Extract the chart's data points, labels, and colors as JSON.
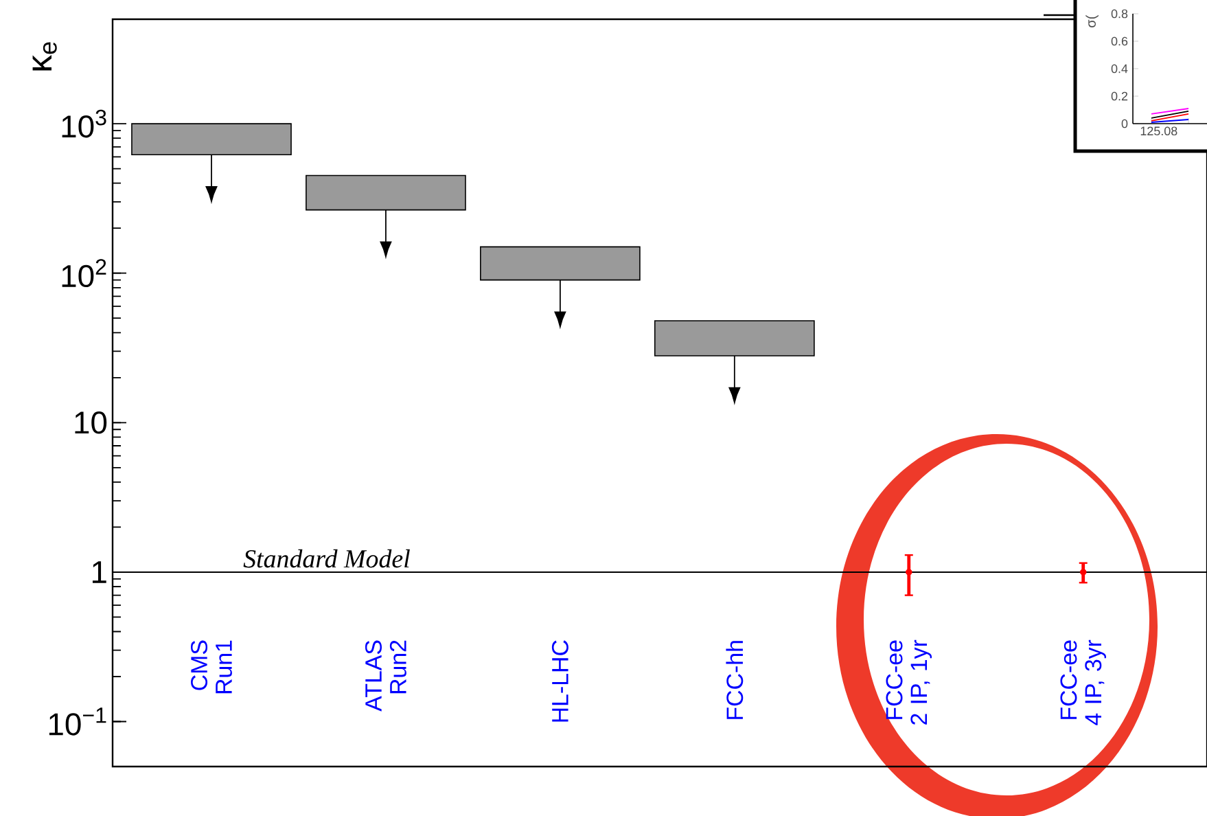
{
  "chart_data": [
    {
      "type": "bar",
      "ylabel": "κ$_{e}$",
      "categories": [
        "CMS Run1",
        "ATLAS Run2",
        "HL-LHC",
        "FCC-hh",
        "FCC-ee 2 IP, 1yr",
        "FCC-ee 4 IP, 3yr"
      ],
      "log": "y",
      "ylim": [
        0.05,
        5000
      ],
      "yticks": [
        {
          "value": 0.1,
          "label": "10$^{−1}$"
        },
        1,
        10,
        {
          "value": 100,
          "label": "10$^{2}$"
        },
        {
          "value": 1000,
          "label": "10$^{3}$"
        }
      ],
      "ref_lines": [
        {
          "axis": "y",
          "value": 1,
          "label": "Standard Model",
          "color": "#000000"
        }
      ],
      "series": [
        {
          "type": "bar",
          "color": "#9a9a9a",
          "base": [
            620,
            265,
            90,
            28,
            null,
            null
          ],
          "values": [
            380,
            185,
            60,
            20,
            null,
            null
          ]
        },
        {
          "type": "scatter",
          "color": "#ff0000",
          "marker": "circle",
          "values": [
            null,
            null,
            null,
            null,
            1,
            1
          ],
          "errors": [
            null,
            null,
            null,
            null,
            0.3,
            0.15
          ]
        }
      ]
    },
    {
      "type": "line",
      "ylabel": "σ(",
      "categories": [
        null,
        null
      ],
      "annotations": [
        "125.08"
      ],
      "ylim": [
        0,
        0.8
      ],
      "yticks": [
        0,
        0.2,
        0.4,
        0.6,
        0.8
      ],
      "series": [
        {
          "color": "#ff00ff",
          "values": [
            0.07,
            0.11
          ]
        },
        {
          "color": "#000000",
          "values": [
            0.04,
            0.09
          ]
        },
        {
          "color": "#ff0000",
          "values": [
            0.02,
            0.07
          ]
        },
        {
          "color": "#0000ff",
          "values": [
            0.01,
            0.03
          ]
        }
      ]
    }
  ]
}
